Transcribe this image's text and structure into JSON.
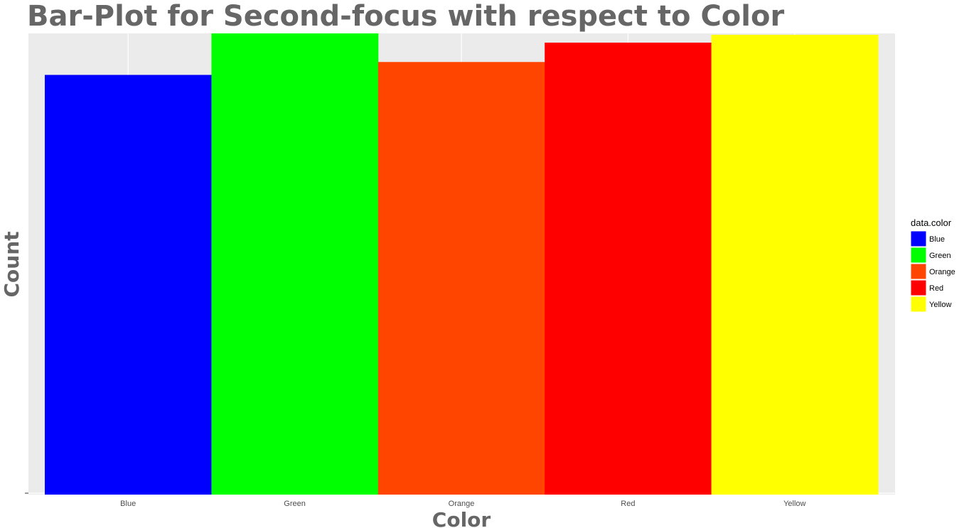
{
  "chart_data": {
    "type": "bar",
    "title": "Bar-Plot for Second-focus with respect to Color",
    "xlabel": "Color",
    "ylabel": "Count",
    "categories": [
      "Blue",
      "Green",
      "Orange",
      "Red",
      "Yellow"
    ],
    "values": [
      91.0,
      100.0,
      93.8,
      98.0,
      99.7
    ],
    "ylim": [
      0,
      100
    ],
    "colors": {
      "Blue": "#0000FF",
      "Green": "#00FF00",
      "Orange": "#FF4500",
      "Red": "#FF0000",
      "Yellow": "#FFFF00"
    },
    "grid": true,
    "panel_background": "#EBEBEB",
    "legend": {
      "title": "data.color",
      "placement": "right",
      "entries": [
        "Blue",
        "Green",
        "Orange",
        "Red",
        "Yellow"
      ]
    }
  }
}
